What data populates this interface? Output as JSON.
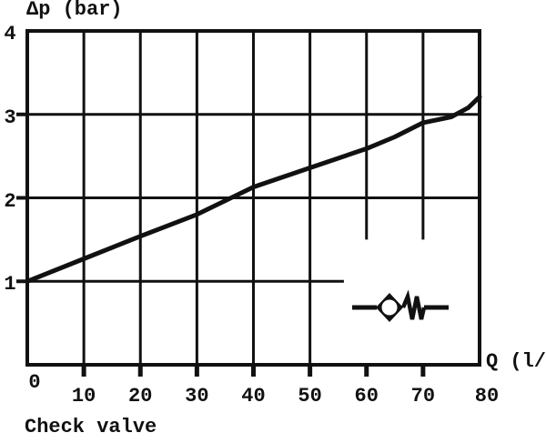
{
  "figure": {
    "background_color": "#ffffff",
    "ink_color": "#111111"
  },
  "chart_data": {
    "type": "line",
    "title": "",
    "caption": "Check valve",
    "ylabel": "Δp (bar)",
    "xlabel": "Q (l/min)",
    "origin_label": "0",
    "xlim": [
      0,
      80
    ],
    "ylim": [
      0,
      4
    ],
    "x_ticks": [
      0,
      10,
      20,
      30,
      40,
      50,
      60,
      70,
      80
    ],
    "y_ticks": [
      0,
      1,
      2,
      3,
      4
    ],
    "grid": true,
    "legend": "none",
    "line_color": "#111111",
    "series": [
      {
        "name": "check-valve-pressure-drop",
        "x": [
          0,
          10,
          20,
          30,
          40,
          50,
          60,
          65,
          70,
          75,
          78,
          80
        ],
        "y": [
          1.0,
          1.27,
          1.54,
          1.8,
          2.13,
          2.36,
          2.59,
          2.73,
          2.9,
          2.97,
          3.08,
          3.21
        ]
      }
    ],
    "gridlines": {
      "vertical": [
        {
          "q": 10,
          "p_from": 0,
          "p_to": 4
        },
        {
          "q": 20,
          "p_from": 0,
          "p_to": 4
        },
        {
          "q": 30,
          "p_from": 0,
          "p_to": 4
        },
        {
          "q": 40,
          "p_from": 0,
          "p_to": 4
        },
        {
          "q": 50,
          "p_from": 0,
          "p_to": 4
        },
        {
          "q": 60,
          "p_from": 1.5,
          "p_to": 4
        },
        {
          "q": 70,
          "p_from": 1.5,
          "p_to": 4
        }
      ],
      "horizontal": [
        {
          "p": 1,
          "q_from": 0,
          "q_to": 56
        },
        {
          "p": 2,
          "q_from": 0,
          "q_to": 80
        },
        {
          "p": 3,
          "q_from": 0,
          "q_to": 80
        }
      ]
    },
    "axis_ticks": {
      "left_p": [
        1,
        2,
        3
      ],
      "bottom_q": [
        10,
        20,
        30,
        40,
        50,
        60,
        70
      ]
    },
    "annotations": [
      {
        "name": "check-valve-symbol",
        "type": "hydraulic-check-valve-icon",
        "q": 64,
        "p": 0.68
      }
    ]
  }
}
